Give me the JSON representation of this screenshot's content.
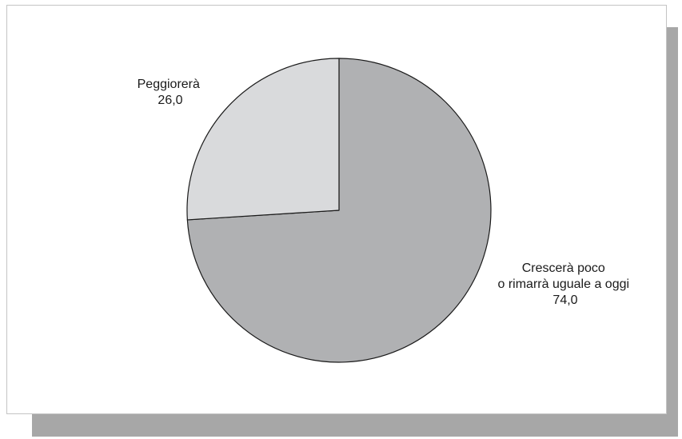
{
  "chart_data": {
    "type": "pie",
    "title": "",
    "slices": [
      {
        "label_lines": [
          "Crescerà poco",
          "o rimarrà uguale a oggi"
        ],
        "value": 74.0,
        "value_label": "74,0",
        "color": "#b0b1b3"
      },
      {
        "label_lines": [
          "Peggiorerà"
        ],
        "value": 26.0,
        "value_label": "26,0",
        "color": "#d9dadc"
      }
    ],
    "start_angle_deg": 0,
    "direction": "clockwise",
    "legend": "none",
    "colors": {
      "stroke": "#1a1a1a",
      "background": "#ffffff",
      "shadow": "#a7a7a7"
    }
  }
}
